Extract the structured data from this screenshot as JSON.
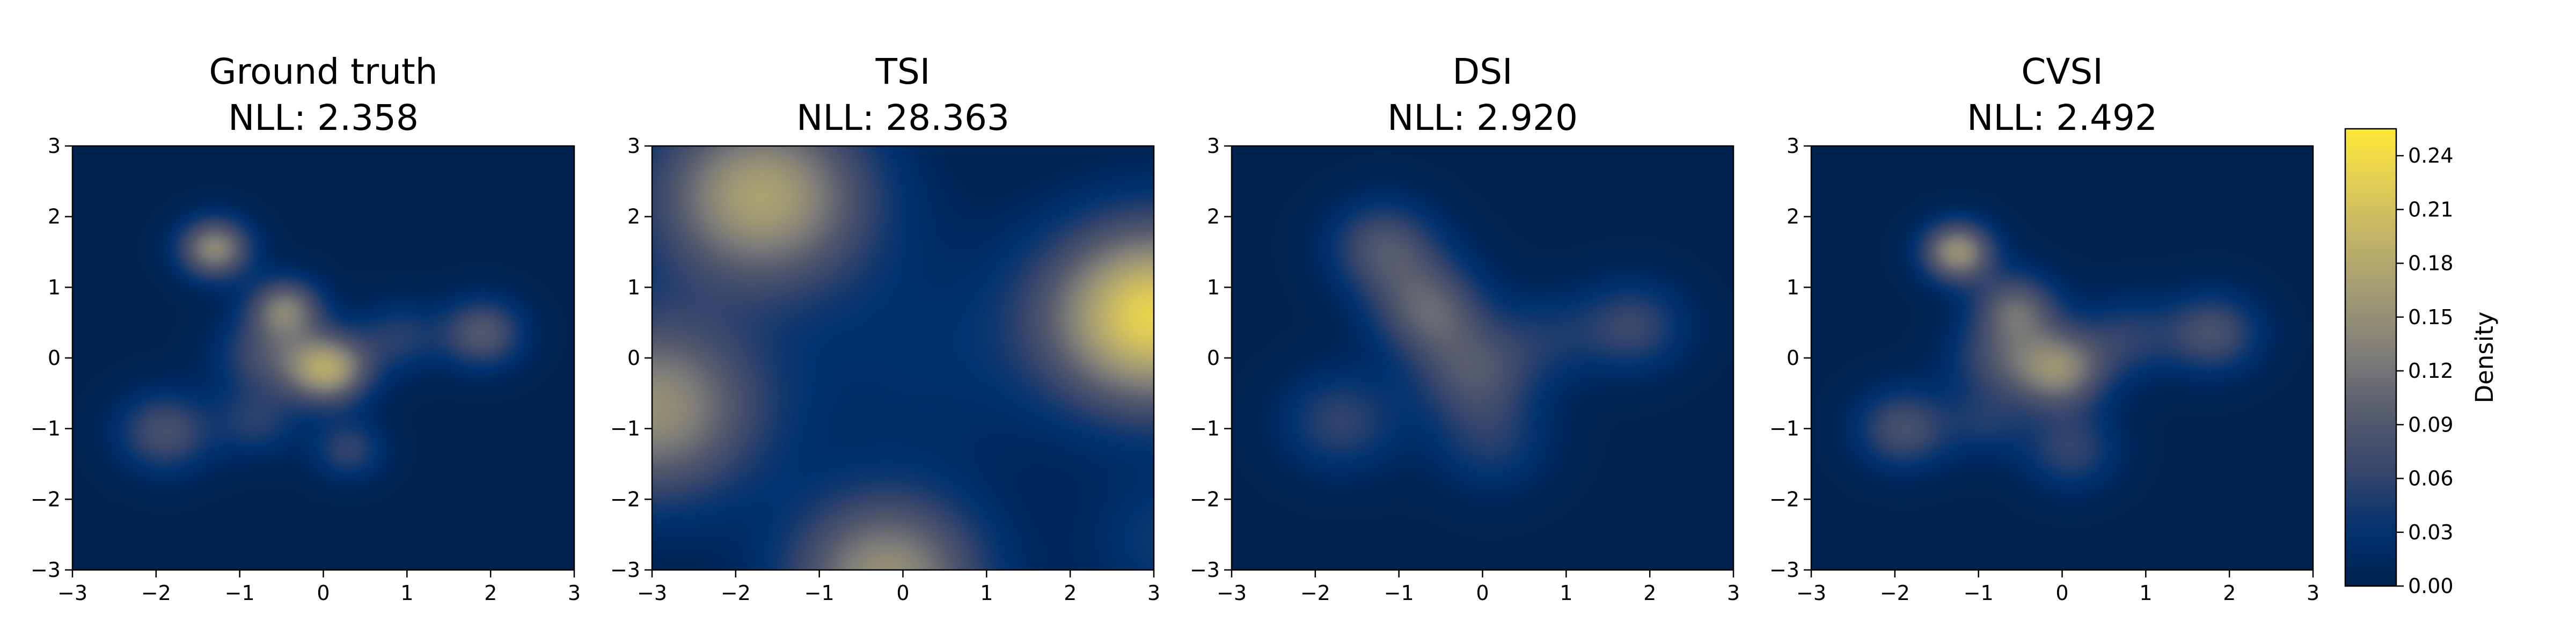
{
  "chart_data": {
    "type": "heatmap",
    "colormap": "cividis",
    "colorbar": {
      "label": "Density",
      "min": 0.0,
      "max": 0.255,
      "ticks": [
        "0.00",
        "0.03",
        "0.06",
        "0.09",
        "0.12",
        "0.15",
        "0.18",
        "0.21",
        "0.24"
      ]
    },
    "x_range": [
      -3,
      3
    ],
    "y_range": [
      -3,
      3
    ],
    "x_ticks": [
      "−3",
      "−2",
      "−1",
      "0",
      "1",
      "2",
      "3"
    ],
    "y_ticks": [
      "−3",
      "−2",
      "−1",
      "0",
      "1",
      "2",
      "3"
    ],
    "panels": [
      {
        "title": "Ground truth",
        "subtitle": "NLL: 2.358",
        "components": [
          {
            "x": 0.05,
            "y": -0.15,
            "sigma": 0.35,
            "peak": 0.17
          },
          {
            "x": -0.45,
            "y": 0.7,
            "sigma": 0.3,
            "peak": 0.12
          },
          {
            "x": -1.3,
            "y": 1.55,
            "sigma": 0.3,
            "peak": 0.14
          },
          {
            "x": -1.9,
            "y": -1.05,
            "sigma": 0.4,
            "peak": 0.08
          },
          {
            "x": 1.9,
            "y": 0.35,
            "sigma": 0.35,
            "peak": 0.09
          },
          {
            "x": -0.7,
            "y": 0.05,
            "sigma": 0.4,
            "peak": 0.07
          },
          {
            "x": 0.3,
            "y": -1.3,
            "sigma": 0.3,
            "peak": 0.06
          },
          {
            "x": -0.8,
            "y": -0.9,
            "sigma": 0.35,
            "peak": 0.05
          },
          {
            "x": 0.9,
            "y": 0.3,
            "sigma": 0.35,
            "peak": 0.05
          }
        ]
      },
      {
        "title": "TSI",
        "subtitle": "NLL: 28.363",
        "components": [
          {
            "x": -1.7,
            "y": 2.3,
            "sigma": 0.9,
            "peak": 0.17
          },
          {
            "x": 3.0,
            "y": 0.6,
            "sigma": 0.9,
            "peak": 0.23
          },
          {
            "x": -3.0,
            "y": -0.7,
            "sigma": 0.9,
            "peak": 0.15
          },
          {
            "x": -0.2,
            "y": -3.1,
            "sigma": 0.8,
            "peak": 0.15
          },
          {
            "x": 3.2,
            "y": -2.6,
            "sigma": 0.7,
            "peak": 0.04
          },
          {
            "x": 0.2,
            "y": 0.0,
            "sigma": 1.2,
            "peak": 0.025
          }
        ]
      },
      {
        "title": "DSI",
        "subtitle": "NLL: 2.920",
        "components": [
          {
            "x": -0.1,
            "y": -0.2,
            "sigma": 0.5,
            "peak": 0.08
          },
          {
            "x": -0.6,
            "y": 0.6,
            "sigma": 0.45,
            "peak": 0.07
          },
          {
            "x": -1.2,
            "y": 1.6,
            "sigma": 0.45,
            "peak": 0.075
          },
          {
            "x": -1.7,
            "y": -0.9,
            "sigma": 0.5,
            "peak": 0.06
          },
          {
            "x": 1.8,
            "y": 0.45,
            "sigma": 0.45,
            "peak": 0.065
          },
          {
            "x": 0.1,
            "y": -1.2,
            "sigma": 0.5,
            "peak": 0.045
          },
          {
            "x": -0.8,
            "y": 1.0,
            "sigma": 0.5,
            "peak": 0.04
          },
          {
            "x": 0.8,
            "y": 0.3,
            "sigma": 0.45,
            "peak": 0.035
          }
        ]
      },
      {
        "title": "CVSI",
        "subtitle": "NLL: 2.492",
        "components": [
          {
            "x": -0.05,
            "y": -0.15,
            "sigma": 0.4,
            "peak": 0.14
          },
          {
            "x": -0.55,
            "y": 0.7,
            "sigma": 0.35,
            "peak": 0.1
          },
          {
            "x": -1.25,
            "y": 1.5,
            "sigma": 0.3,
            "peak": 0.15
          },
          {
            "x": -1.9,
            "y": -1.0,
            "sigma": 0.4,
            "peak": 0.08
          },
          {
            "x": 1.8,
            "y": 0.35,
            "sigma": 0.4,
            "peak": 0.08
          },
          {
            "x": 0.1,
            "y": -1.3,
            "sigma": 0.4,
            "peak": 0.06
          },
          {
            "x": -0.8,
            "y": 0.0,
            "sigma": 0.4,
            "peak": 0.06
          },
          {
            "x": 0.8,
            "y": 0.3,
            "sigma": 0.4,
            "peak": 0.05
          },
          {
            "x": -0.9,
            "y": -0.9,
            "sigma": 0.35,
            "peak": 0.04
          }
        ]
      }
    ]
  }
}
